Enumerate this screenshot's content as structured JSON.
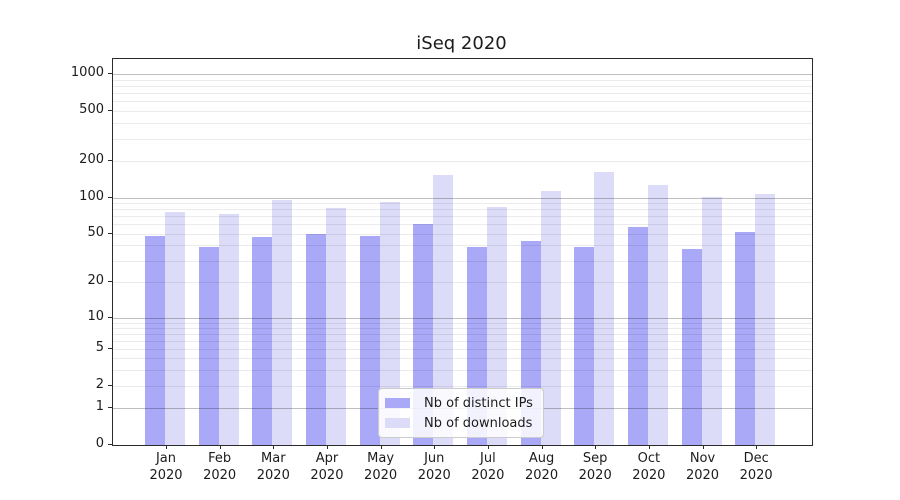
{
  "title": "iSeq 2020",
  "chart_data": {
    "type": "bar",
    "title": "iSeq 2020",
    "categories": [
      "Jan 2020",
      "Feb 2020",
      "Mar 2020",
      "Apr 2020",
      "May 2020",
      "Jun 2020",
      "Jul 2020",
      "Aug 2020",
      "Sep 2020",
      "Oct 2020",
      "Nov 2020",
      "Dec 2020"
    ],
    "series": [
      {
        "name": "Nb of distinct IPs",
        "color": "#a9a9f8",
        "values": [
          48,
          39,
          47,
          50,
          48,
          60,
          39,
          43,
          39,
          57,
          37,
          51
        ]
      },
      {
        "name": "Nb of downloads",
        "color": "#dcdcf9",
        "values": [
          76,
          73,
          95,
          82,
          92,
          152,
          84,
          113,
          160,
          127,
          101,
          107
        ]
      }
    ],
    "yscale": "log-with-zero",
    "y_tick_values": [
      0,
      1,
      2,
      5,
      10,
      20,
      50,
      100,
      200,
      500,
      1000
    ],
    "y_tick_labels": [
      "0",
      "1",
      "2",
      "5",
      "10",
      "20",
      "50",
      "100",
      "200",
      "500",
      "1000"
    ],
    "ylim": [
      0,
      1000
    ],
    "grid": "horizontal major+minor",
    "legend_position": "lower center"
  },
  "colors": {
    "major_grid": "rgba(0,0,0,0.25)",
    "minor_grid": "rgba(0,0,0,0.08)",
    "spine": "#2b2b2b",
    "text": "#1c1c1c"
  }
}
